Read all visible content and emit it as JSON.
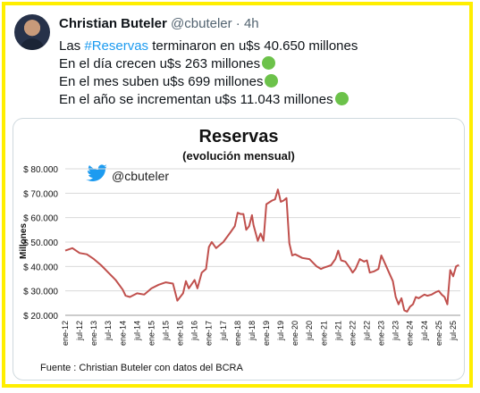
{
  "tweet": {
    "author_name": "Christian Buteler",
    "handle": "@cbuteler",
    "time": "4h",
    "lines": [
      {
        "prefix": "Las ",
        "hashtag": "#Reservas",
        "suffix": " terminaron en u$s 40.650 millones",
        "emoji": false
      },
      {
        "prefix": "En el día crecen u$s 263 millones",
        "hashtag": "",
        "suffix": "",
        "emoji": true
      },
      {
        "prefix": "En el mes suben u$s 699 millones",
        "hashtag": "",
        "suffix": "",
        "emoji": true
      },
      {
        "prefix": "En el año se incrementan u$s 11.043 millones",
        "hashtag": "",
        "suffix": "",
        "emoji": true
      }
    ]
  },
  "chart_data": {
    "type": "line",
    "title": "Reservas",
    "subtitle": "(evolución mensual)",
    "ylabel": "Millones",
    "xlabel": "",
    "watermark_handle": "@cbuteler",
    "source": "Fuente : Christian Buteler con datos del BCRA",
    "ylim": [
      20000,
      80000
    ],
    "yticks": [
      20000,
      30000,
      40000,
      50000,
      60000,
      70000,
      80000
    ],
    "ytick_labels": [
      "$ 20.000",
      "$ 30.000",
      "$ 40.000",
      "$ 50.000",
      "$ 60.000",
      "$ 70.000",
      "$ 80.000"
    ],
    "xtick_labels": [
      "ene-12",
      "jul-12",
      "ene-13",
      "jul-13",
      "ene-14",
      "jul-14",
      "ene-15",
      "jul-15",
      "ene-16",
      "jul-16",
      "ene-17",
      "jul-17",
      "ene-18",
      "jul-18",
      "ene-19",
      "jul-19",
      "ene-20",
      "jul-20",
      "ene-21",
      "jul-21",
      "ene-22",
      "jul-22",
      "ene-23",
      "jul-23",
      "ene-24",
      "jul-24",
      "ene-25",
      "jul-25"
    ],
    "grid": true,
    "line_color": "#c0504d",
    "series": [
      {
        "values": [
          [
            2012.0,
            46500
          ],
          [
            2012.25,
            47500
          ],
          [
            2012.5,
            45500
          ],
          [
            2012.75,
            45000
          ],
          [
            2013.0,
            43000
          ],
          [
            2013.25,
            40500
          ],
          [
            2013.5,
            37500
          ],
          [
            2013.75,
            34500
          ],
          [
            2014.0,
            30500
          ],
          [
            2014.1,
            28000
          ],
          [
            2014.25,
            27500
          ],
          [
            2014.5,
            29000
          ],
          [
            2014.75,
            28500
          ],
          [
            2015.0,
            31000
          ],
          [
            2015.25,
            32500
          ],
          [
            2015.5,
            33500
          ],
          [
            2015.75,
            33000
          ],
          [
            2015.9,
            26000
          ],
          [
            2016.0,
            27500
          ],
          [
            2016.1,
            29000
          ],
          [
            2016.2,
            34000
          ],
          [
            2016.3,
            31000
          ],
          [
            2016.5,
            34500
          ],
          [
            2016.6,
            31000
          ],
          [
            2016.75,
            37500
          ],
          [
            2016.9,
            39000
          ],
          [
            2017.0,
            48000
          ],
          [
            2017.1,
            50000
          ],
          [
            2017.25,
            47500
          ],
          [
            2017.5,
            50000
          ],
          [
            2017.75,
            54000
          ],
          [
            2017.9,
            56500
          ],
          [
            2018.0,
            62000
          ],
          [
            2018.1,
            61500
          ],
          [
            2018.2,
            61500
          ],
          [
            2018.3,
            55000
          ],
          [
            2018.4,
            56500
          ],
          [
            2018.5,
            61000
          ],
          [
            2018.55,
            57000
          ],
          [
            2018.7,
            50500
          ],
          [
            2018.8,
            53500
          ],
          [
            2018.9,
            50500
          ],
          [
            2019.0,
            65500
          ],
          [
            2019.2,
            67000
          ],
          [
            2019.3,
            67500
          ],
          [
            2019.4,
            71500
          ],
          [
            2019.5,
            66500
          ],
          [
            2019.6,
            67000
          ],
          [
            2019.7,
            68000
          ],
          [
            2019.8,
            49500
          ],
          [
            2019.9,
            44500
          ],
          [
            2020.0,
            45000
          ],
          [
            2020.25,
            43500
          ],
          [
            2020.5,
            43000
          ],
          [
            2020.75,
            40000
          ],
          [
            2020.9,
            39000
          ],
          [
            2021.0,
            39500
          ],
          [
            2021.25,
            40500
          ],
          [
            2021.4,
            43000
          ],
          [
            2021.5,
            46500
          ],
          [
            2021.6,
            42500
          ],
          [
            2021.75,
            42000
          ],
          [
            2021.9,
            39500
          ],
          [
            2022.0,
            37500
          ],
          [
            2022.1,
            39000
          ],
          [
            2022.25,
            43000
          ],
          [
            2022.4,
            42000
          ],
          [
            2022.5,
            42500
          ],
          [
            2022.6,
            37500
          ],
          [
            2022.75,
            38000
          ],
          [
            2022.9,
            39000
          ],
          [
            2023.0,
            44500
          ],
          [
            2023.1,
            42000
          ],
          [
            2023.25,
            38000
          ],
          [
            2023.4,
            34000
          ],
          [
            2023.5,
            27500
          ],
          [
            2023.6,
            24500
          ],
          [
            2023.7,
            27000
          ],
          [
            2023.8,
            22000
          ],
          [
            2023.9,
            21500
          ],
          [
            2024.0,
            23500
          ],
          [
            2024.1,
            24500
          ],
          [
            2024.2,
            27500
          ],
          [
            2024.3,
            27000
          ],
          [
            2024.5,
            28500
          ],
          [
            2024.6,
            28000
          ],
          [
            2024.75,
            28500
          ],
          [
            2024.9,
            29500
          ],
          [
            2025.0,
            30000
          ],
          [
            2025.1,
            28500
          ],
          [
            2025.2,
            27500
          ],
          [
            2025.3,
            24500
          ],
          [
            2025.4,
            38500
          ],
          [
            2025.5,
            36000
          ],
          [
            2025.6,
            40000
          ],
          [
            2025.7,
            40650
          ]
        ]
      }
    ]
  }
}
